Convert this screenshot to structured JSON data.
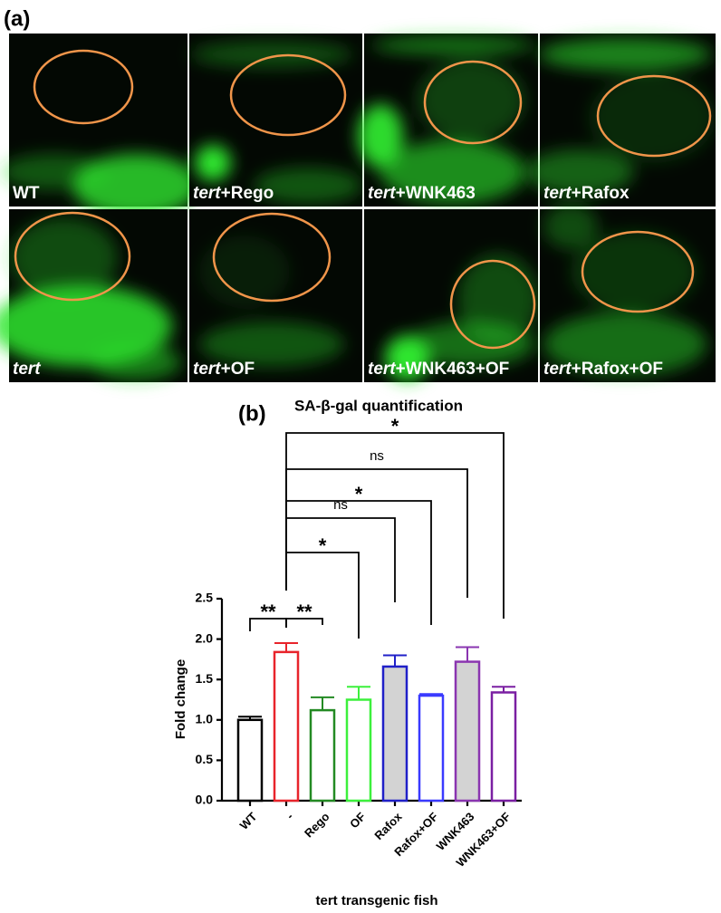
{
  "panel_a": {
    "label": "(a)",
    "panels": [
      {
        "rest": "WT"
      },
      {
        "italic": "tert",
        "rest": "+Rego"
      },
      {
        "italic": "tert",
        "rest": "+WNK463"
      },
      {
        "italic": "tert",
        "rest": "+Rafox"
      },
      {
        "italic": "tert"
      },
      {
        "italic": "tert",
        "rest": "+OF"
      },
      {
        "italic": "tert",
        "rest": "+WNK463+OF"
      },
      {
        "italic": "tert",
        "rest": "+Rafox+OF"
      }
    ]
  },
  "chart_data": {
    "type": "bar",
    "panel_label": "(b)",
    "title": "SA-β-gal quantification",
    "x_label": "tert transgenic fish",
    "y_label": "Fold change",
    "categories": [
      "WT",
      "-",
      "Rego",
      "OF",
      "Rafox",
      "Rafox+OF",
      "WNK463",
      "WNK463+OF"
    ],
    "values": [
      1.0,
      1.84,
      1.12,
      1.25,
      1.66,
      1.3,
      1.72,
      1.34
    ],
    "errors": [
      0.04,
      0.11,
      0.16,
      0.16,
      0.14,
      0.02,
      0.18,
      0.07
    ],
    "colors": [
      "#000000",
      "#e8242b",
      "#238a23",
      "#3cf03c",
      "#2020c8",
      "#3a3aff",
      "#8a35b0",
      "#7a1fa2"
    ],
    "fills": [
      "#ffffff",
      "#ffffff",
      "#ffffff",
      "#ffffff",
      "#d3d3d3",
      "#ffffff",
      "#d3d3d3",
      "#ffffff"
    ],
    "ylim": [
      0,
      2.5
    ],
    "yticks": [
      {
        "value": 0,
        "label": "0.0"
      },
      {
        "value": 0.5,
        "label": "0.5"
      },
      {
        "value": 1,
        "label": "1.0"
      },
      {
        "value": 1.5,
        "label": "1.5"
      },
      {
        "value": 2,
        "label": "2.0"
      },
      {
        "value": 2.5,
        "label": "2.5"
      }
    ],
    "significance": [
      "**",
      "**",
      "*",
      "ns",
      "*",
      "ns",
      "*"
    ]
  }
}
